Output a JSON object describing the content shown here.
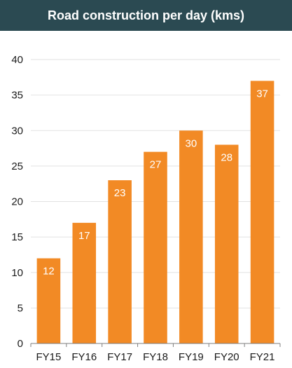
{
  "header": {
    "title": "Road construction per day (kms)"
  },
  "colors": {
    "title_bar_bg": "#2b4a52",
    "bar_fill": "#f28a25",
    "grid_line": "#e2e2e2",
    "axis_line": "#7f7f7f",
    "tick_text": "#1a1a1a",
    "data_label_text": "#ffffff"
  },
  "chart_data": {
    "type": "bar",
    "title": "Road construction per day (kms)",
    "xlabel": "",
    "ylabel": "",
    "categories": [
      "FY15",
      "FY16",
      "FY17",
      "FY18",
      "FY19",
      "FY20",
      "FY21"
    ],
    "values": [
      12,
      17,
      23,
      27,
      30,
      28,
      37
    ],
    "ylim": [
      0,
      40
    ],
    "yticks": [
      0,
      5,
      10,
      15,
      20,
      25,
      30,
      35,
      40
    ],
    "grid": true,
    "data_labels": true,
    "legend": "none"
  }
}
